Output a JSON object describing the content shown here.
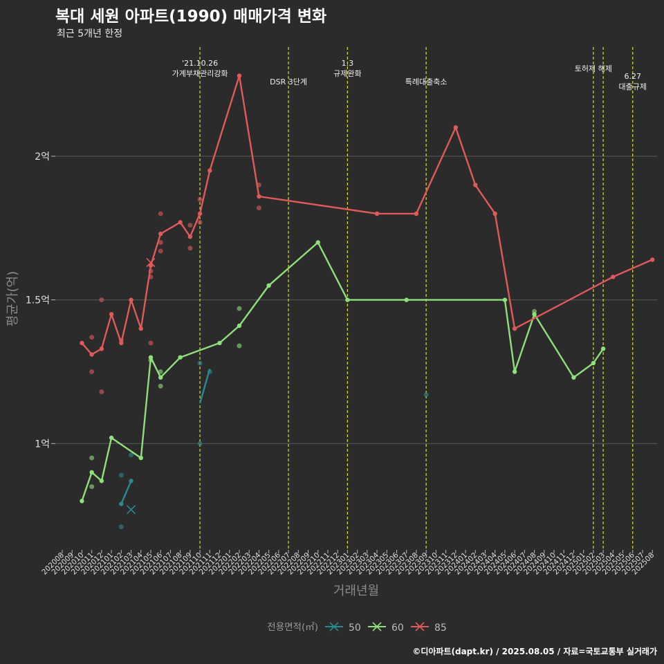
{
  "title": "복대 세원 아파트(1990) 매매가격 변화",
  "subtitle": "최근 5개년 한정",
  "caption": "©디아파트(dapt.kr) / 2025.08.05 / 자료=국토교통부 실거래가",
  "chart_data": {
    "type": "line",
    "xlabel": "거래년월",
    "ylabel": "평균가(억)",
    "x_categories": [
      "202008",
      "202009",
      "202010",
      "202011",
      "202012",
      "202101",
      "202102",
      "202103",
      "202104",
      "202105",
      "202106",
      "202107",
      "202108",
      "202109",
      "202110",
      "202111",
      "202112",
      "202201",
      "202202",
      "202203",
      "202204",
      "202205",
      "202206",
      "202207",
      "202208",
      "202209",
      "202210",
      "202211",
      "202212",
      "202301",
      "202302",
      "202303",
      "202304",
      "202305",
      "202306",
      "202307",
      "202308",
      "202309",
      "202310",
      "202311",
      "202312",
      "202401",
      "202402",
      "202403",
      "202404",
      "202405",
      "202406",
      "202407",
      "202408",
      "202409",
      "202410",
      "202411",
      "202412",
      "202501",
      "202502",
      "202503",
      "202504",
      "202505",
      "202506",
      "202507",
      "202508"
    ],
    "y_ticks": [
      {
        "value": 1.0,
        "label": "1억"
      },
      {
        "value": 1.5,
        "label": "1.5억"
      },
      {
        "value": 2.0,
        "label": "2억"
      }
    ],
    "ylim": [
      0.63,
      2.38
    ],
    "grid": true,
    "legend": {
      "title": "전용면적(㎡)",
      "position": "bottom"
    },
    "series": [
      {
        "name": "50",
        "color": "#2a8a92",
        "line": [
          [
            "202103",
            0.87
          ],
          [
            "202102",
            0.79
          ]
        ],
        "line2": [
          [
            "202110",
            1.14
          ],
          [
            "202111",
            1.26
          ]
        ],
        "points": [
          [
            "202102",
            0.71
          ],
          [
            "202102",
            0.89
          ],
          [
            "202103",
            0.96
          ],
          [
            "202110",
            1.0
          ],
          [
            "202110",
            1.28
          ],
          [
            "202111",
            1.25
          ],
          [
            "202309",
            1.17
          ]
        ],
        "cross": [
          [
            "202103",
            0.77
          ]
        ]
      },
      {
        "name": "60",
        "color": "#8fe07a",
        "line": [
          [
            "202010",
            0.8
          ],
          [
            "202011",
            0.9
          ],
          [
            "202012",
            0.87
          ],
          [
            "202101",
            1.02
          ],
          [
            "202104",
            0.95
          ],
          [
            "202105",
            1.3
          ],
          [
            "202106",
            1.23
          ],
          [
            "202108",
            1.3
          ],
          [
            "202112",
            1.35
          ],
          [
            "202202",
            1.41
          ],
          [
            "202205",
            1.55
          ],
          [
            "202210",
            1.7
          ],
          [
            "202301",
            1.5
          ],
          [
            "202307",
            1.5
          ],
          [
            "202405",
            1.5
          ],
          [
            "202406",
            1.25
          ],
          [
            "202408",
            1.45
          ],
          [
            "202412",
            1.23
          ],
          [
            "202502",
            1.28
          ],
          [
            "202503",
            1.33
          ]
        ],
        "points": [
          [
            "202011",
            0.95
          ],
          [
            "202011",
            0.85
          ],
          [
            "202105",
            1.29
          ],
          [
            "202106",
            1.25
          ],
          [
            "202106",
            1.2
          ],
          [
            "202202",
            1.47
          ],
          [
            "202202",
            1.34
          ],
          [
            "202408",
            1.46
          ]
        ],
        "cross": []
      },
      {
        "name": "85",
        "color": "#e05a5a",
        "line": [
          [
            "202010",
            1.35
          ],
          [
            "202011",
            1.31
          ],
          [
            "202012",
            1.33
          ],
          [
            "202101",
            1.45
          ],
          [
            "202102",
            1.35
          ],
          [
            "202103",
            1.5
          ],
          [
            "202104",
            1.4
          ],
          [
            "202105",
            1.62
          ],
          [
            "202106",
            1.73
          ],
          [
            "202108",
            1.77
          ],
          [
            "202109",
            1.72
          ],
          [
            "202110",
            1.8
          ],
          [
            "202111",
            1.95
          ],
          [
            "202202",
            2.28
          ],
          [
            "202204",
            1.86
          ],
          [
            "202304",
            1.8
          ],
          [
            "202308",
            1.8
          ],
          [
            "202312",
            2.1
          ],
          [
            "202402",
            1.9
          ],
          [
            "202404",
            1.8
          ],
          [
            "202406",
            1.4
          ],
          [
            "202504",
            1.58
          ],
          [
            "202508",
            1.64
          ]
        ],
        "points": [
          [
            "202011",
            1.37
          ],
          [
            "202011",
            1.25
          ],
          [
            "202012",
            1.5
          ],
          [
            "202012",
            1.18
          ],
          [
            "202102",
            1.36
          ],
          [
            "202105",
            1.58
          ],
          [
            "202105",
            1.6
          ],
          [
            "202105",
            1.35
          ],
          [
            "202106",
            1.8
          ],
          [
            "202106",
            1.67
          ],
          [
            "202106",
            1.7
          ],
          [
            "202109",
            1.76
          ],
          [
            "202109",
            1.68
          ],
          [
            "202110",
            1.85
          ],
          [
            "202110",
            1.77
          ],
          [
            "202204",
            1.9
          ],
          [
            "202204",
            1.82
          ]
        ],
        "cross": [
          [
            "202105",
            1.63
          ]
        ]
      }
    ],
    "events": [
      {
        "x": "202110",
        "label": "'21.10.26\n가계부채관리강화",
        "row": 0
      },
      {
        "x": "202207",
        "label": "DSR 3단계",
        "row": 1
      },
      {
        "x": "202301",
        "label": "1.3\n규제완화",
        "row": 0
      },
      {
        "x": "202309",
        "label": "특례대출축소",
        "row": 1
      },
      {
        "x": "202502",
        "label": "토허제 해제",
        "row": 0
      },
      {
        "x": "202503",
        "label": "",
        "row": 0
      },
      {
        "x": "202506",
        "label": "6.27\n대출규제",
        "row": 0
      }
    ]
  }
}
